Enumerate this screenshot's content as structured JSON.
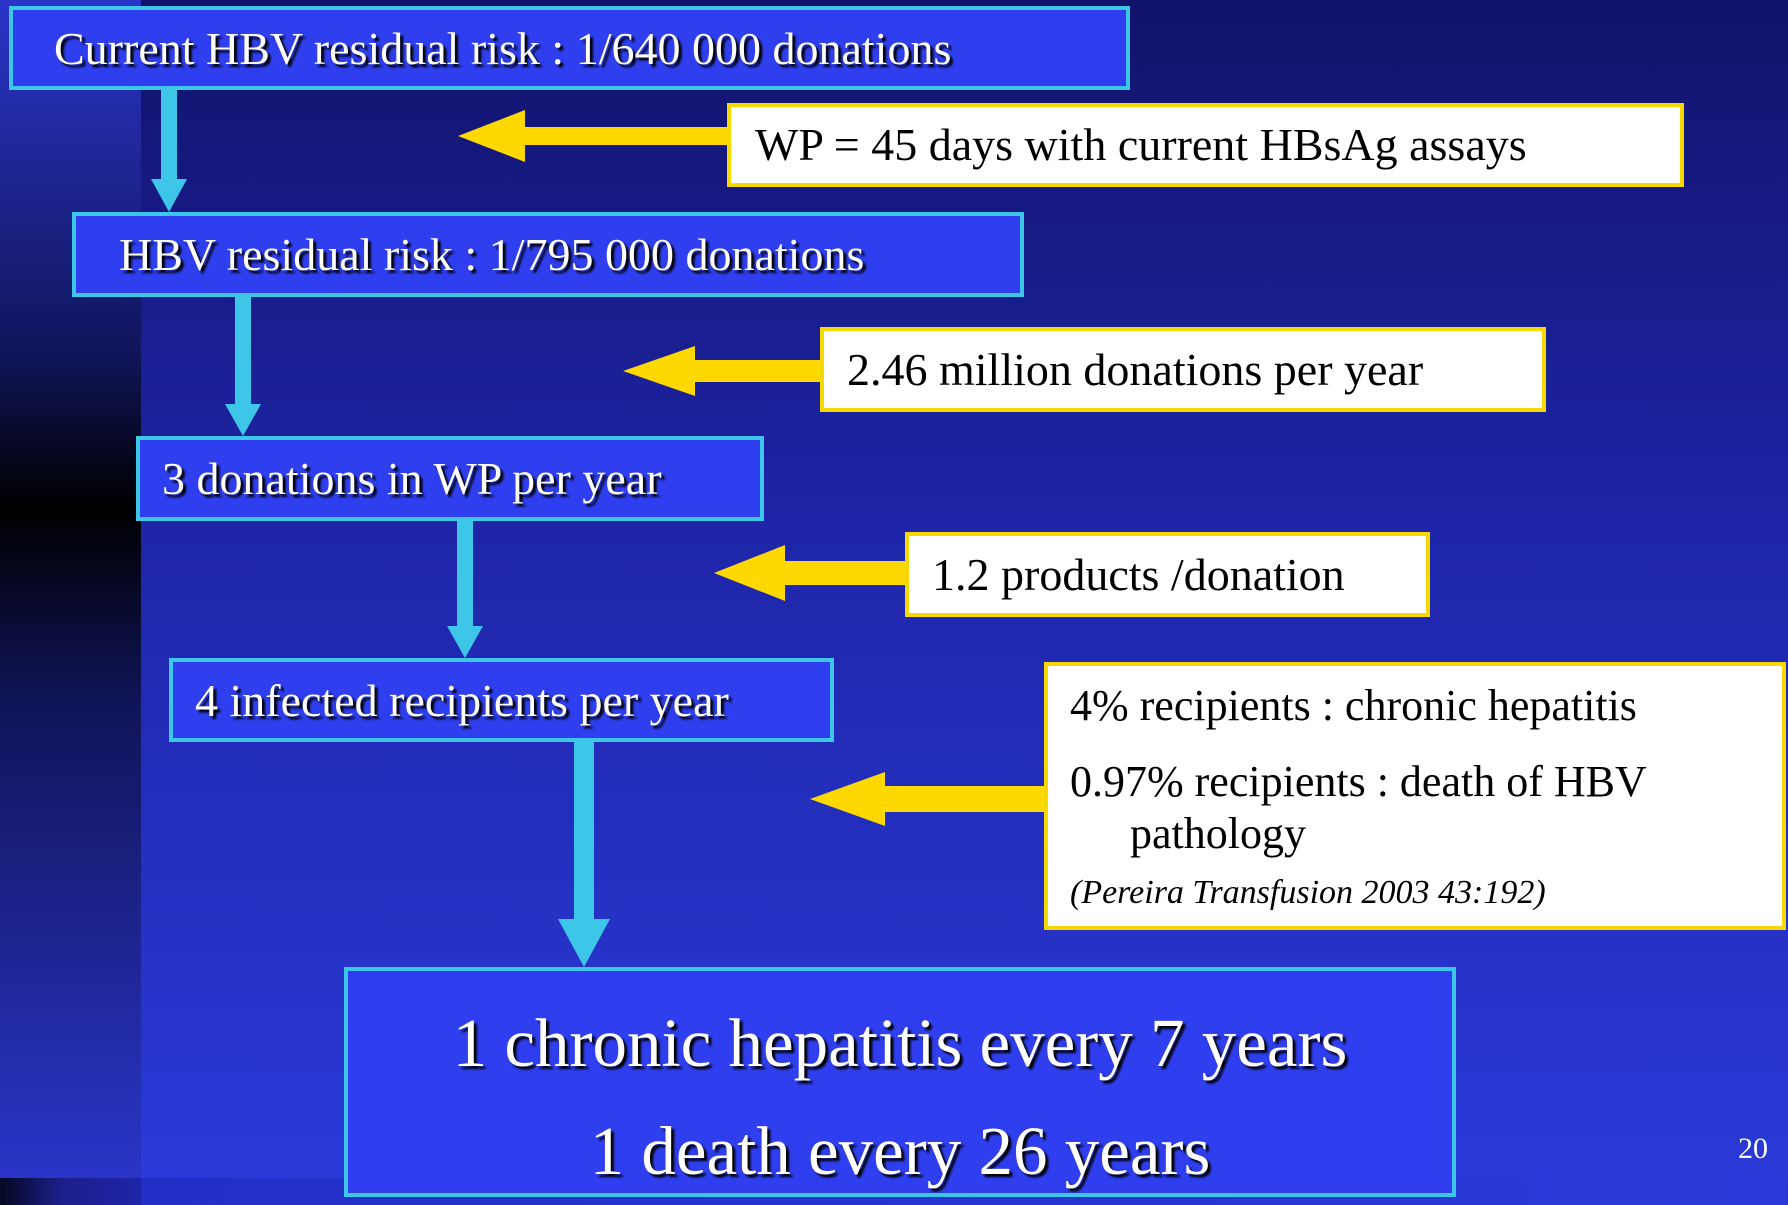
{
  "steps": [
    {
      "label": "Current HBV residual risk : 1/640 000 donations"
    },
    {
      "label": "HBV residual risk : 1/795 000 donations"
    },
    {
      "label": "3 donations in WP per year"
    },
    {
      "label": "4 infected recipients per year"
    },
    {
      "lines": [
        "1 chronic hepatitis every 7 years",
        "1 death every 26 years"
      ]
    }
  ],
  "factors": [
    {
      "label": "WP = 45 days with current HBsAg assays"
    },
    {
      "label": "2.46 million donations per year"
    },
    {
      "label": "1.2 products /donation"
    },
    {
      "lines": [
        "4% recipients : chronic hepatitis",
        "0.97% recipients : death of HBV pathology"
      ],
      "source": "(Pereira Transfusion 2003 43:192)"
    }
  ],
  "page_number": "20"
}
